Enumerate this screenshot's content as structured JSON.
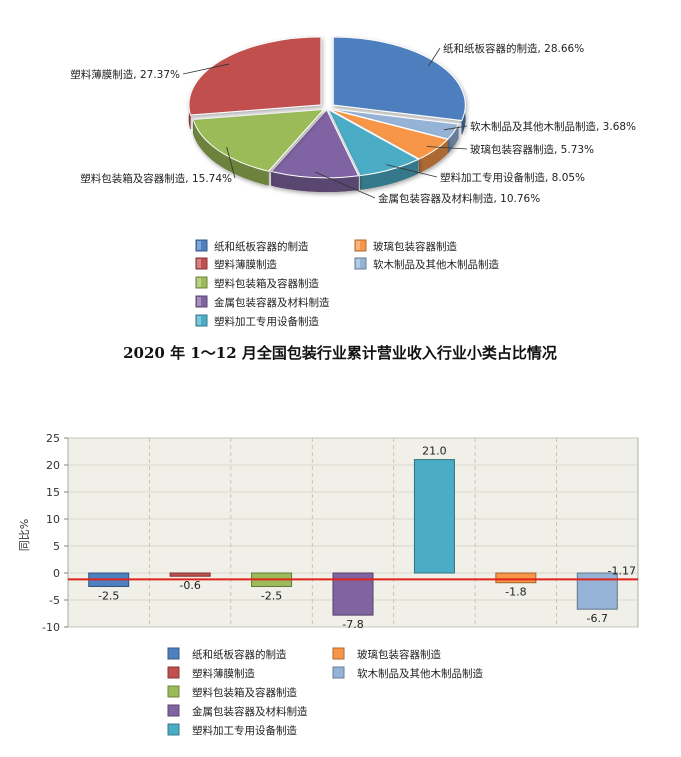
{
  "colors": {
    "blue": "#4e7fbf",
    "red": "#c0504d",
    "green": "#9bbb59",
    "purple": "#8064a2",
    "teal": "#4bacc6",
    "orange": "#f79646",
    "lightblue": "#95b3d7",
    "reference_line": "#e0241b",
    "plot_bg": "#f0f0e8"
  },
  "chart_data": [
    {
      "type": "pie",
      "title": "2020 年 1～12 月全国包装行业累计营业收入行业小类占比情况",
      "slices": [
        {
          "name": "纸和纸板容器的制造",
          "value": 28.66,
          "label": "纸和纸板容器的制造, 28.66%",
          "color": "blue"
        },
        {
          "name": "软木制品及其他木制品制造",
          "value": 3.68,
          "label": "软木制品及其他木制品制造, 3.68%",
          "color": "lightblue"
        },
        {
          "name": "玻璃包装容器制造",
          "value": 5.73,
          "label": "玻璃包装容器制造, 5.73%",
          "color": "orange"
        },
        {
          "name": "塑料加工专用设备制造",
          "value": 8.05,
          "label": "塑料加工专用设备制造, 8.05%",
          "color": "teal"
        },
        {
          "name": "金属包装容器及材料制造",
          "value": 10.76,
          "label": "金属包装容器及材料制造, 10.76%",
          "color": "purple"
        },
        {
          "name": "塑料包装箱及容器制造",
          "value": 15.74,
          "label": "塑料包装箱及容器制造, 15.74%",
          "color": "green"
        },
        {
          "name": "塑料薄膜制造",
          "value": 27.37,
          "label": "塑料薄膜制造, 27.37%",
          "color": "red"
        }
      ],
      "legend": [
        {
          "name": "纸和纸板容器的制造",
          "color": "blue"
        },
        {
          "name": "玻璃包装容器制造",
          "color": "orange"
        },
        {
          "name": "塑料薄膜制造",
          "color": "red"
        },
        {
          "name": "软木制品及其他木制品制造",
          "color": "lightblue"
        },
        {
          "name": "塑料包装箱及容器制造",
          "color": "green"
        },
        {
          "name": "金属包装容器及材料制造",
          "color": "purple"
        },
        {
          "name": "塑料加工专用设备制造",
          "color": "teal"
        }
      ]
    },
    {
      "type": "bar",
      "ylabel": "同比%",
      "ylim": [
        -10,
        25
      ],
      "yticks": [
        "25",
        "20",
        "15",
        "10",
        "5",
        "0",
        "-5",
        "-10"
      ],
      "grid": true,
      "series": [
        {
          "name": "纸和纸板容器的制造",
          "value": -2.5,
          "label": "-2.5",
          "color": "blue"
        },
        {
          "name": "塑料薄膜制造",
          "value": -0.6,
          "label": "-0.6",
          "color": "red"
        },
        {
          "name": "塑料包装箱及容器制造",
          "value": -2.5,
          "label": "-2.5",
          "color": "green"
        },
        {
          "name": "金属包装容器及材料制造",
          "value": -7.8,
          "label": "-7.8",
          "color": "purple"
        },
        {
          "name": "塑料加工专用设备制造",
          "value": 21.0,
          "label": "21.0",
          "color": "teal"
        },
        {
          "name": "玻璃包装容器制造",
          "value": -1.8,
          "label": "-1.8",
          "color": "orange"
        },
        {
          "name": "软木制品及其他木制品制造",
          "value": -6.7,
          "label": "-6.7",
          "color": "lightblue"
        }
      ],
      "reference_line": {
        "value": -1.17,
        "label": "-1.17"
      },
      "legend": [
        {
          "name": "纸和纸板容器的制造",
          "color": "blue"
        },
        {
          "name": "玻璃包装容器制造",
          "color": "orange"
        },
        {
          "name": "塑料薄膜制造",
          "color": "red"
        },
        {
          "name": "软木制品及其他木制品制造",
          "color": "lightblue"
        },
        {
          "name": "塑料包装箱及容器制造",
          "color": "green"
        },
        {
          "name": "金属包装容器及材料制造",
          "color": "purple"
        },
        {
          "name": "塑料加工专用设备制造",
          "color": "teal"
        }
      ]
    }
  ]
}
